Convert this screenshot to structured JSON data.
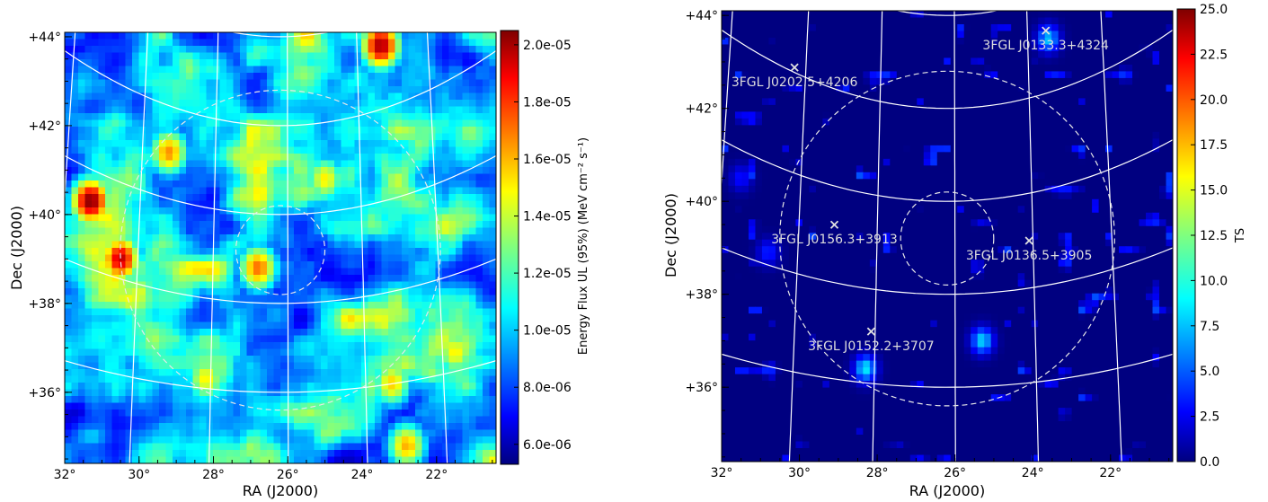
{
  "chart_data": [
    {
      "type": "heatmap",
      "xlabel": "RA (J2000)",
      "ylabel": "Dec (J2000)",
      "x_ticks": [
        "32°",
        "30°",
        "28°",
        "26°",
        "24°",
        "22°"
      ],
      "y_ticks": [
        "+36°",
        "+38°",
        "+40°",
        "+42°",
        "+44°"
      ],
      "xlim": [
        32,
        20.4
      ],
      "ylim": [
        34.4,
        44.1
      ],
      "grid": true,
      "colormap": "jet",
      "colorbar": {
        "label": "Energy Flux UL (95%) (MeV cm⁻² s⁻¹)",
        "ticks": [
          "6.0e-06",
          "8.0e-06",
          "1.0e-05",
          "1.2e-05",
          "1.4e-05",
          "1.6e-05",
          "1.8e-05",
          "2.0e-05"
        ],
        "range": [
          5.3e-06,
          2.05e-05
        ]
      },
      "circles": [
        {
          "style": "dashed",
          "center_ra": 26.2,
          "center_dec": 39.2,
          "radius_deg": 1.0
        },
        {
          "style": "dashed",
          "center_ra": 26.2,
          "center_dec": 39.2,
          "radius_deg": 3.6
        }
      ],
      "hotspots": [
        {
          "ra": 31.3,
          "dec": 40.3,
          "value": 2.05e-05
        },
        {
          "ra": 30.5,
          "dec": 39.0,
          "value": 1.95e-05
        },
        {
          "ra": 23.5,
          "dec": 43.8,
          "value": 2e-05
        },
        {
          "ra": 29.2,
          "dec": 41.4,
          "value": 1.65e-05
        },
        {
          "ra": 26.8,
          "dec": 38.8,
          "value": 1.7e-05
        },
        {
          "ra": 25.0,
          "dec": 40.8,
          "value": 1.5e-05
        },
        {
          "ra": 23.2,
          "dec": 36.2,
          "value": 1.55e-05
        },
        {
          "ra": 21.5,
          "dec": 36.9,
          "value": 1.5e-05
        },
        {
          "ra": 22.8,
          "dec": 34.8,
          "value": 1.6e-05
        },
        {
          "ra": 28.2,
          "dec": 36.3,
          "value": 1.5e-05
        }
      ]
    },
    {
      "type": "heatmap",
      "xlabel": "RA (J2000)",
      "ylabel": "Dec (J2000)",
      "x_ticks": [
        "32°",
        "30°",
        "28°",
        "26°",
        "24°",
        "22°"
      ],
      "y_ticks": [
        "+36°",
        "+38°",
        "+40°",
        "+42°",
        "+44°"
      ],
      "xlim": [
        32,
        20.4
      ],
      "ylim": [
        34.4,
        44.1
      ],
      "grid": true,
      "colormap": "jet",
      "colorbar": {
        "label": "TS",
        "ticks": [
          "0.0",
          "2.5",
          "5.0",
          "7.5",
          "10.0",
          "12.5",
          "15.0",
          "17.5",
          "20.0",
          "22.5",
          "25.0"
        ],
        "range": [
          0,
          25
        ]
      },
      "circles": [
        {
          "style": "dashed",
          "center_ra": 26.2,
          "center_dec": 39.2,
          "radius_deg": 1.0
        },
        {
          "style": "dashed",
          "center_ra": 26.2,
          "center_dec": 39.2,
          "radius_deg": 3.6
        }
      ],
      "sources": [
        {
          "name": "3FGL J0133.3+4324",
          "ra": 23.5,
          "dec": 43.3
        },
        {
          "name": "3FGL J0202.5+4206",
          "ra": 30.3,
          "dec": 42.1
        },
        {
          "name": "3FGL J0156.3+3913",
          "ra": 29.1,
          "dec": 39.2
        },
        {
          "name": "3FGL J0136.5+3905",
          "ra": 24.1,
          "dec": 39.0
        },
        {
          "name": "3FGL J0152.2+3707",
          "ra": 28.1,
          "dec": 37.1
        }
      ],
      "hotspots": [
        {
          "ra": 28.3,
          "dec": 36.4,
          "value": 9.0
        },
        {
          "ra": 23.6,
          "dec": 43.5,
          "value": 8.0
        },
        {
          "ra": 25.3,
          "dec": 37.0,
          "value": 8.5
        },
        {
          "ra": 30.8,
          "dec": 38.9,
          "value": 4.0
        },
        {
          "ra": 31.5,
          "dec": 40.5,
          "value": 3.5
        }
      ]
    }
  ]
}
